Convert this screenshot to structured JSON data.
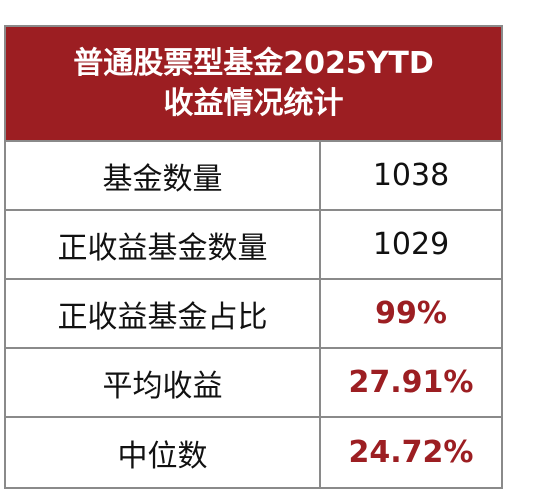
{
  "table": {
    "title_line1": "普通股票型基金2025YTD",
    "title_line2": "收益情况统计",
    "header_color": "#9c1e22",
    "highlight_color": "#9c1e22",
    "rows": [
      {
        "label": "基金数量",
        "value": "1038",
        "highlight": false
      },
      {
        "label": "正收益基金数量",
        "value": "1029",
        "highlight": false
      },
      {
        "label": "正收益基金占比",
        "value": "99%",
        "highlight": true
      },
      {
        "label": "平均收益",
        "value": "27.91%",
        "highlight": true
      },
      {
        "label": "中位数",
        "value": "24.72%",
        "highlight": true
      }
    ]
  }
}
